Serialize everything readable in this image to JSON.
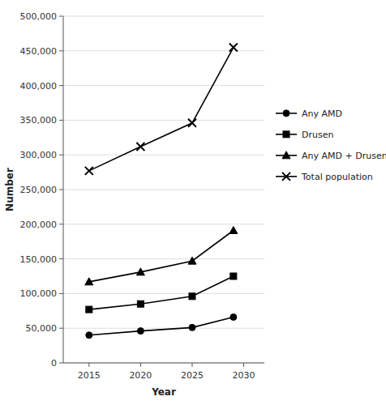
{
  "chart_data": {
    "type": "line",
    "x": [
      2015,
      2020,
      2025,
      2029
    ],
    "xlim": [
      2012.5,
      2032
    ],
    "xticks": [
      2015,
      2020,
      2025,
      2030
    ],
    "ylim": [
      0,
      500000
    ],
    "yticks": [
      0,
      {
        "value": 50000,
        "label": "50,000"
      },
      {
        "value": 100000,
        "label": "100,000"
      },
      {
        "value": 150000,
        "label": "150,000"
      },
      {
        "value": 200000,
        "label": "200,000"
      },
      {
        "value": 250000,
        "label": "250,000"
      },
      {
        "value": 300000,
        "label": "300,000"
      },
      {
        "value": 350000,
        "label": "350,000"
      },
      {
        "value": 400000,
        "label": "400,000"
      },
      {
        "value": 450000,
        "label": "450,000"
      },
      {
        "value": 500000,
        "label": "500,000"
      }
    ],
    "xlabel": "Year",
    "ylabel": "Number",
    "grid": true,
    "legend": "right",
    "series": [
      {
        "name": "Any AMD",
        "color": "#000000",
        "marker": "o",
        "values": [
          40000,
          46000,
          51000,
          66000
        ]
      },
      {
        "name": "Drusen",
        "color": "#000000",
        "marker": "s",
        "values": [
          77000,
          85000,
          96000,
          125000
        ]
      },
      {
        "name": "Any AMD + Drusen",
        "color": "#000000",
        "marker": "^",
        "values": [
          117000,
          131000,
          147000,
          191000
        ]
      },
      {
        "name": "Total population",
        "color": "#000000",
        "marker": "x",
        "values": [
          277000,
          312000,
          346000,
          455000
        ]
      }
    ]
  }
}
